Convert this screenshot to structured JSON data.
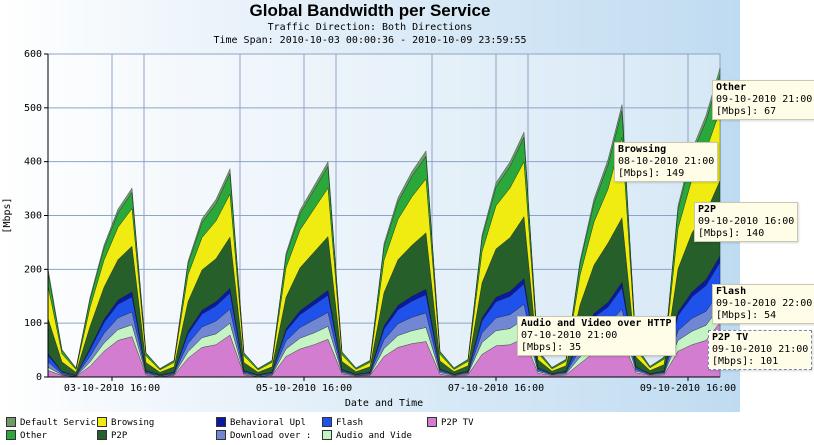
{
  "chart_data": {
    "type": "area",
    "stacked": true,
    "title": "Global Bandwidth per Service",
    "subtitles": [
      "Traffic Direction: Both Directions",
      "Time Span: 2010-10-03 00:00:36 - 2010-10-09 23:59:55"
    ],
    "xlabel": "Date and Time",
    "ylabel": "[Mbps]",
    "ylim": [
      0,
      600
    ],
    "yticks": [
      0,
      100,
      200,
      300,
      400,
      500,
      600
    ],
    "xtick_labels": [
      "03-10-2010 16:00",
      "05-10-2010 16:00",
      "07-10-2010 16:00",
      "09-10-2010 16:00"
    ],
    "grid": true,
    "legend_position": "bottom",
    "x_start": "2010-10-03 00:00",
    "x_end": "2010-10-10 00:00",
    "series": [
      {
        "name": "P2P TV",
        "color": "#d27dcf",
        "values": [
          12,
          3,
          1,
          20,
          48,
          68,
          75,
          4,
          1,
          3,
          35,
          55,
          60,
          78,
          4,
          1,
          3,
          38,
          52,
          60,
          70,
          6,
          2,
          3,
          38,
          55,
          62,
          66,
          5,
          2,
          4,
          42,
          58,
          60,
          72,
          7,
          3,
          4,
          25,
          45,
          52,
          70,
          8,
          3,
          4,
          48,
          60,
          68,
          101
        ]
      },
      {
        "name": "Audio and Video",
        "color": "#c4f4c4",
        "values": [
          6,
          1,
          0,
          8,
          15,
          20,
          22,
          2,
          1,
          1,
          12,
          18,
          20,
          22,
          2,
          1,
          1,
          14,
          20,
          22,
          24,
          2,
          1,
          1,
          15,
          22,
          24,
          26,
          3,
          1,
          2,
          22,
          28,
          30,
          35,
          3,
          1,
          2,
          12,
          20,
          22,
          28,
          3,
          1,
          2,
          20,
          25,
          28,
          30
        ]
      },
      {
        "name": "Download over HTTP",
        "color": "#7187d4",
        "values": [
          10,
          2,
          1,
          10,
          18,
          22,
          24,
          2,
          1,
          2,
          15,
          20,
          24,
          26,
          2,
          1,
          2,
          15,
          20,
          24,
          26,
          2,
          1,
          2,
          16,
          22,
          25,
          27,
          3,
          1,
          2,
          18,
          24,
          26,
          28,
          3,
          1,
          2,
          14,
          20,
          24,
          28,
          3,
          1,
          2,
          18,
          24,
          26,
          28
        ]
      },
      {
        "name": "Flash",
        "color": "#1f52ea",
        "values": [
          12,
          3,
          1,
          12,
          20,
          25,
          28,
          3,
          1,
          2,
          18,
          24,
          28,
          30,
          3,
          1,
          2,
          18,
          24,
          28,
          32,
          3,
          1,
          2,
          20,
          26,
          30,
          34,
          3,
          1,
          2,
          22,
          30,
          34,
          38,
          3,
          1,
          2,
          18,
          26,
          32,
          40,
          4,
          1,
          2,
          28,
          40,
          48,
          54
        ]
      },
      {
        "name": "Behavioral Upload",
        "color": "#0a1aa0",
        "values": [
          4,
          1,
          0,
          4,
          6,
          8,
          9,
          1,
          0,
          1,
          5,
          7,
          8,
          9,
          1,
          0,
          1,
          5,
          7,
          8,
          9,
          1,
          0,
          1,
          6,
          8,
          9,
          10,
          1,
          0,
          1,
          6,
          8,
          9,
          10,
          1,
          0,
          1,
          5,
          7,
          9,
          10,
          1,
          0,
          1,
          7,
          9,
          11,
          12
        ]
      },
      {
        "name": "P2P",
        "color": "#265f2a",
        "values": [
          65,
          18,
          6,
          40,
          60,
          75,
          85,
          15,
          5,
          10,
          55,
          75,
          80,
          95,
          15,
          5,
          10,
          58,
          80,
          90,
          100,
          15,
          5,
          10,
          62,
          85,
          95,
          105,
          15,
          5,
          10,
          65,
          90,
          100,
          115,
          15,
          5,
          10,
          60,
          90,
          110,
          120,
          18,
          6,
          12,
          80,
          110,
          125,
          140
        ]
      },
      {
        "name": "Browsing",
        "color": "#f0ec12",
        "values": [
          60,
          15,
          5,
          35,
          50,
          60,
          70,
          12,
          4,
          8,
          50,
          60,
          70,
          80,
          12,
          4,
          8,
          55,
          70,
          80,
          90,
          12,
          4,
          8,
          60,
          75,
          90,
          100,
          12,
          4,
          8,
          58,
          80,
          92,
          102,
          12,
          4,
          8,
          55,
          80,
          100,
          149,
          14,
          5,
          10,
          75,
          100,
          115,
          130
        ]
      },
      {
        "name": "Other",
        "color": "#2aa83c",
        "values": [
          25,
          6,
          2,
          15,
          22,
          27,
          30,
          5,
          2,
          3,
          20,
          28,
          32,
          38,
          5,
          2,
          3,
          22,
          30,
          35,
          40,
          5,
          2,
          3,
          25,
          32,
          38,
          42,
          5,
          2,
          3,
          25,
          35,
          40,
          45,
          5,
          2,
          3,
          22,
          35,
          45,
          50,
          6,
          2,
          3,
          35,
          45,
          55,
          67
        ]
      },
      {
        "name": "Default Service",
        "color": "#6f9a6a",
        "values": [
          8,
          2,
          1,
          4,
          6,
          7,
          8,
          1,
          1,
          1,
          5,
          7,
          8,
          9,
          1,
          1,
          1,
          5,
          7,
          8,
          9,
          1,
          1,
          1,
          6,
          8,
          9,
          10,
          1,
          1,
          1,
          6,
          8,
          9,
          10,
          1,
          1,
          1,
          5,
          8,
          10,
          11,
          1,
          1,
          1,
          7,
          9,
          10,
          12
        ]
      }
    ]
  },
  "legend": [
    {
      "label": "Default Servic",
      "color": "#6f9a6a"
    },
    {
      "label": "Browsing",
      "color": "#f0ec12"
    },
    {
      "label": "Behavioral Upl",
      "color": "#0a1aa0"
    },
    {
      "label": "Flash",
      "color": "#1f52ea"
    },
    {
      "label": "P2P TV",
      "color": "#d27dcf"
    },
    {
      "label": "Other",
      "color": "#2aa83c"
    },
    {
      "label": "P2P",
      "color": "#265f2a"
    },
    {
      "label": "Download over :",
      "color": "#7187d4"
    },
    {
      "label": "Audio and Vide",
      "color": "#c4f4c4"
    }
  ],
  "tooltips": [
    {
      "name": "Other",
      "time": "09-10-2010 21:00",
      "value": "[Mbps]: 67"
    },
    {
      "name": "Browsing",
      "time": "08-10-2010 21:00",
      "value": "[Mbps]: 149"
    },
    {
      "name": "P2P",
      "time": "09-10-2010 16:00",
      "value": "[Mbps]: 140"
    },
    {
      "name": "Flash",
      "time": "09-10-2010 22:00",
      "value": "[Mbps]: 54"
    },
    {
      "name": "Audio and Video over HTTP",
      "time": "07-10-2010 21:00",
      "value": "[Mbps]: 35"
    },
    {
      "name": "P2P TV",
      "time": "09-10-2010 21:00",
      "value": "[Mbps]: 101"
    }
  ]
}
